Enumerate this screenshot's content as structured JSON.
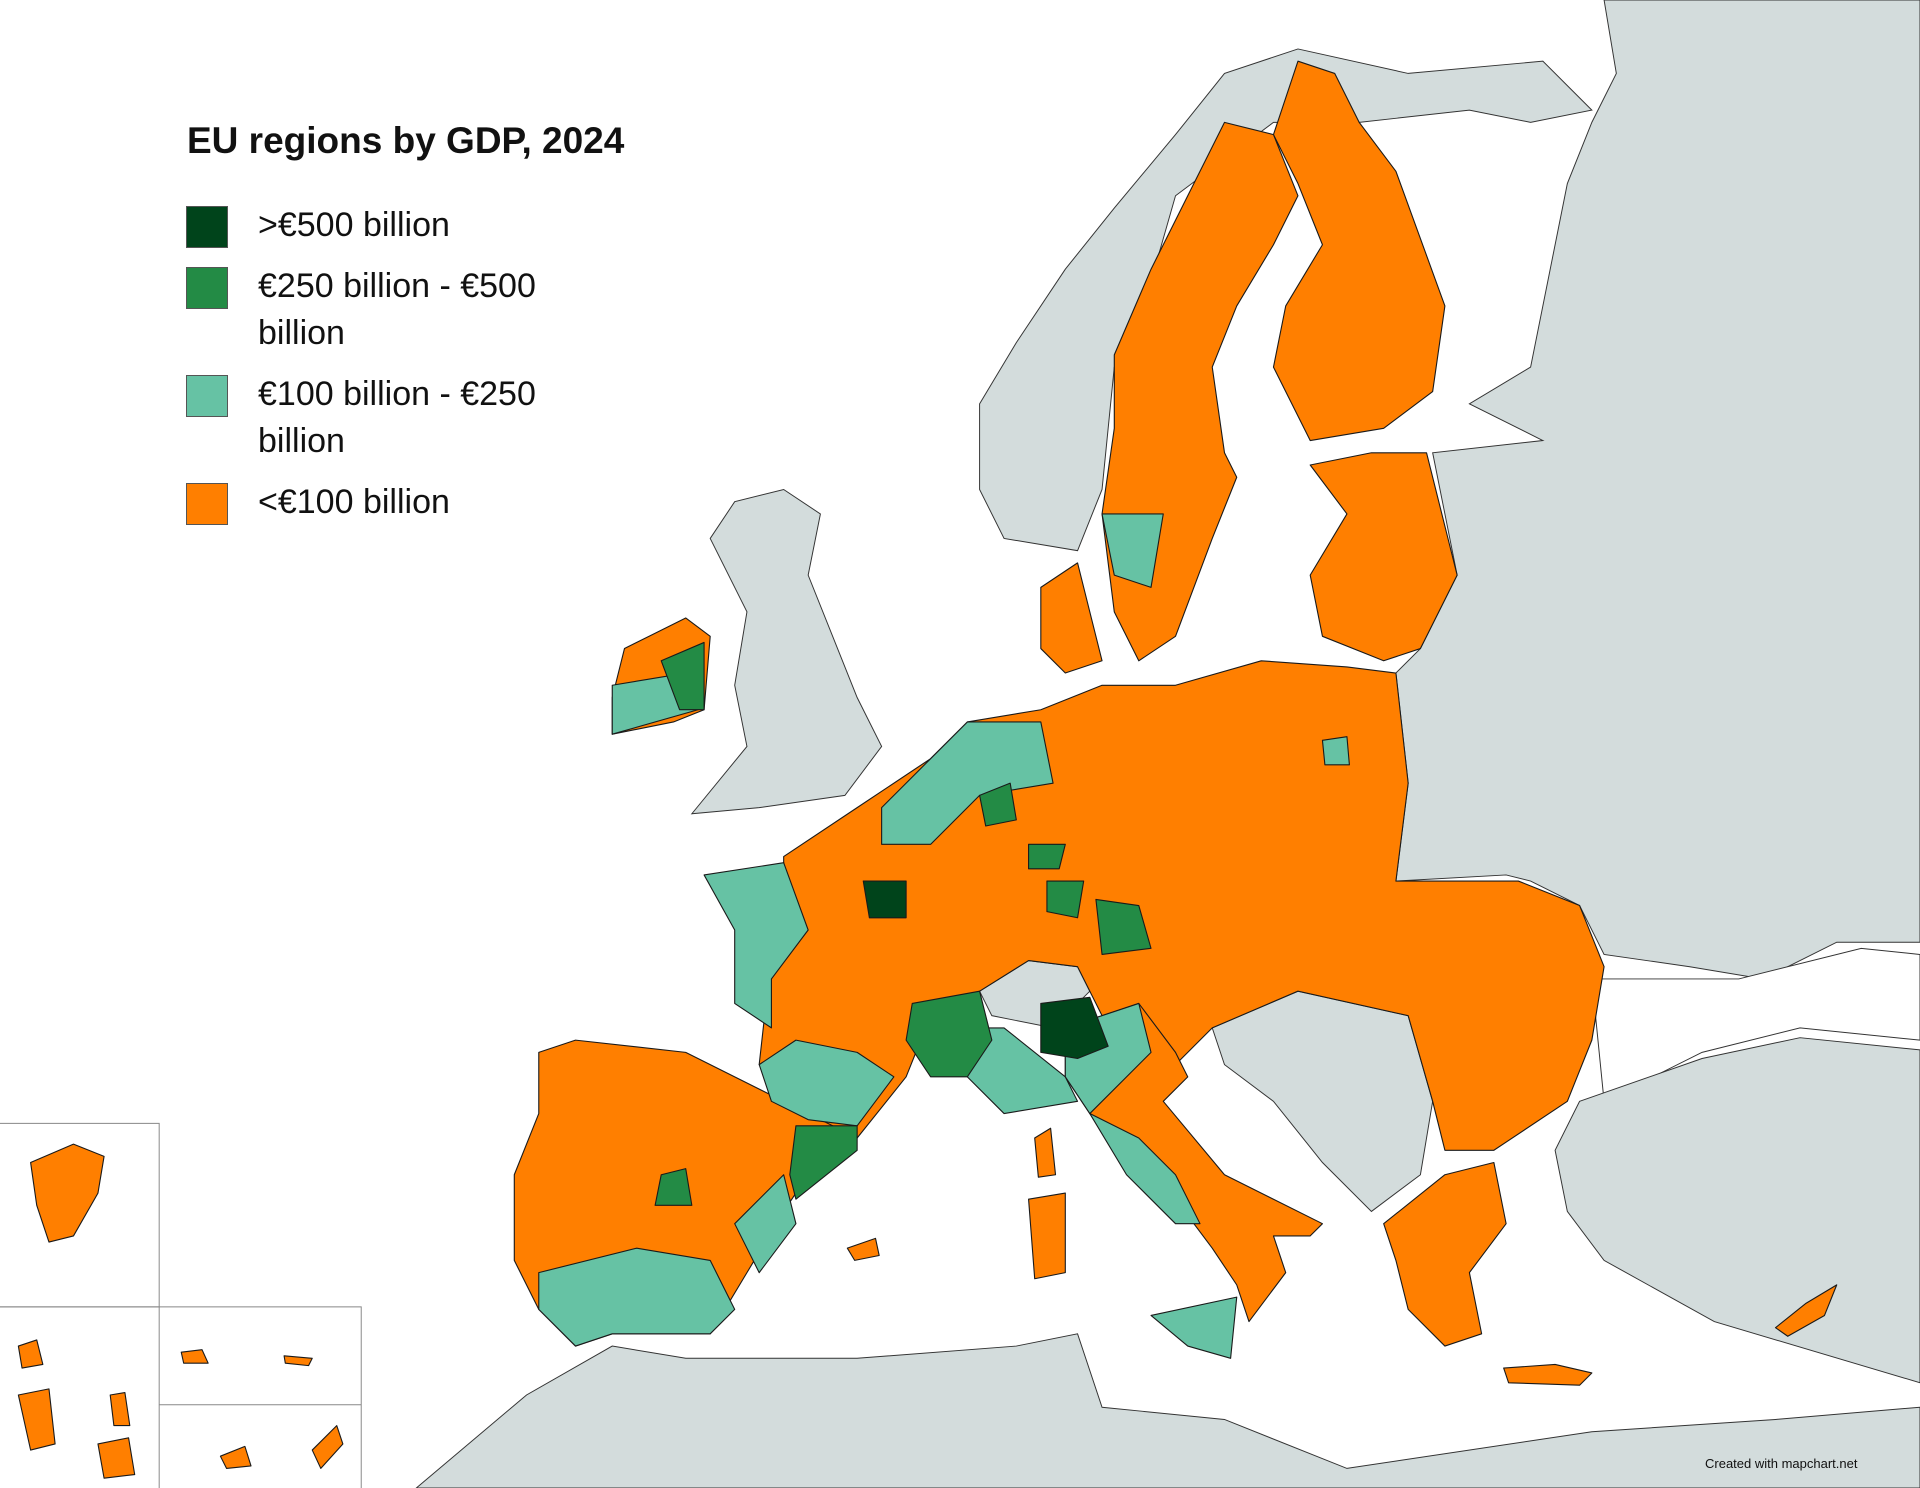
{
  "title": "EU regions by GDP, 2024",
  "legend": [
    {
      "label": ">€500 billion",
      "color": "#00441b"
    },
    {
      "label": "€250 billion - €500 billion",
      "color": "#238b45"
    },
    {
      "label": "€100 billion - €250 billion",
      "color": "#66c2a4"
    },
    {
      "label": "<€100 billion",
      "color": "#ff7f00"
    }
  ],
  "credit": "Created with mapchart.net"
}
